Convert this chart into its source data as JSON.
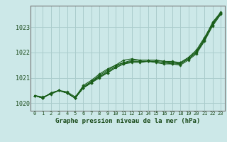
{
  "title": "Graphe pression niveau de la mer (hPa)",
  "x_labels": [
    "0",
    "1",
    "2",
    "3",
    "4",
    "5",
    "6",
    "7",
    "8",
    "9",
    "10",
    "11",
    "12",
    "13",
    "14",
    "15",
    "16",
    "17",
    "18",
    "19",
    "20",
    "21",
    "22",
    "23"
  ],
  "ylim": [
    1019.7,
    1023.85
  ],
  "yticks": [
    1020,
    1021,
    1022,
    1023
  ],
  "xlim": [
    -0.5,
    23.5
  ],
  "background_color": "#cce8e8",
  "grid_color": "#aacccc",
  "line_color": "#1a5e1a",
  "title_color": "#1a4a1a",
  "series": [
    [
      1020.3,
      1020.2,
      1020.4,
      1020.5,
      1020.4,
      1020.2,
      1020.6,
      1020.8,
      1021.05,
      1021.2,
      1021.4,
      1021.55,
      1021.65,
      1021.65,
      1021.65,
      1021.65,
      1021.6,
      1021.6,
      1021.55,
      1021.75,
      1022.0,
      1022.5,
      1023.1,
      1023.55
    ],
    [
      1020.3,
      1020.2,
      1020.4,
      1020.5,
      1020.4,
      1020.2,
      1020.7,
      1020.9,
      1021.15,
      1021.35,
      1021.5,
      1021.6,
      1021.7,
      1021.7,
      1021.7,
      1021.7,
      1021.65,
      1021.65,
      1021.6,
      1021.8,
      1022.1,
      1022.6,
      1023.15,
      1023.6
    ],
    [
      1020.3,
      1020.25,
      1020.35,
      1020.5,
      1020.45,
      1020.25,
      1020.65,
      1020.85,
      1021.1,
      1021.3,
      1021.5,
      1021.7,
      1021.75,
      1021.7,
      1021.7,
      1021.7,
      1021.65,
      1021.6,
      1021.6,
      1021.8,
      1022.05,
      1022.55,
      1023.2,
      1023.58
    ],
    [
      1020.3,
      1020.2,
      1020.4,
      1020.5,
      1020.4,
      1020.2,
      1020.6,
      1020.85,
      1021.05,
      1021.25,
      1021.45,
      1021.6,
      1021.65,
      1021.65,
      1021.65,
      1021.65,
      1021.6,
      1021.55,
      1021.55,
      1021.75,
      1022.0,
      1022.5,
      1023.1,
      1023.55
    ],
    [
      1020.3,
      1020.2,
      1020.4,
      1020.5,
      1020.4,
      1020.2,
      1020.6,
      1020.8,
      1021.0,
      1021.2,
      1021.4,
      1021.55,
      1021.6,
      1021.6,
      1021.65,
      1021.6,
      1021.55,
      1021.55,
      1021.5,
      1021.7,
      1021.95,
      1022.45,
      1023.05,
      1023.5
    ]
  ]
}
